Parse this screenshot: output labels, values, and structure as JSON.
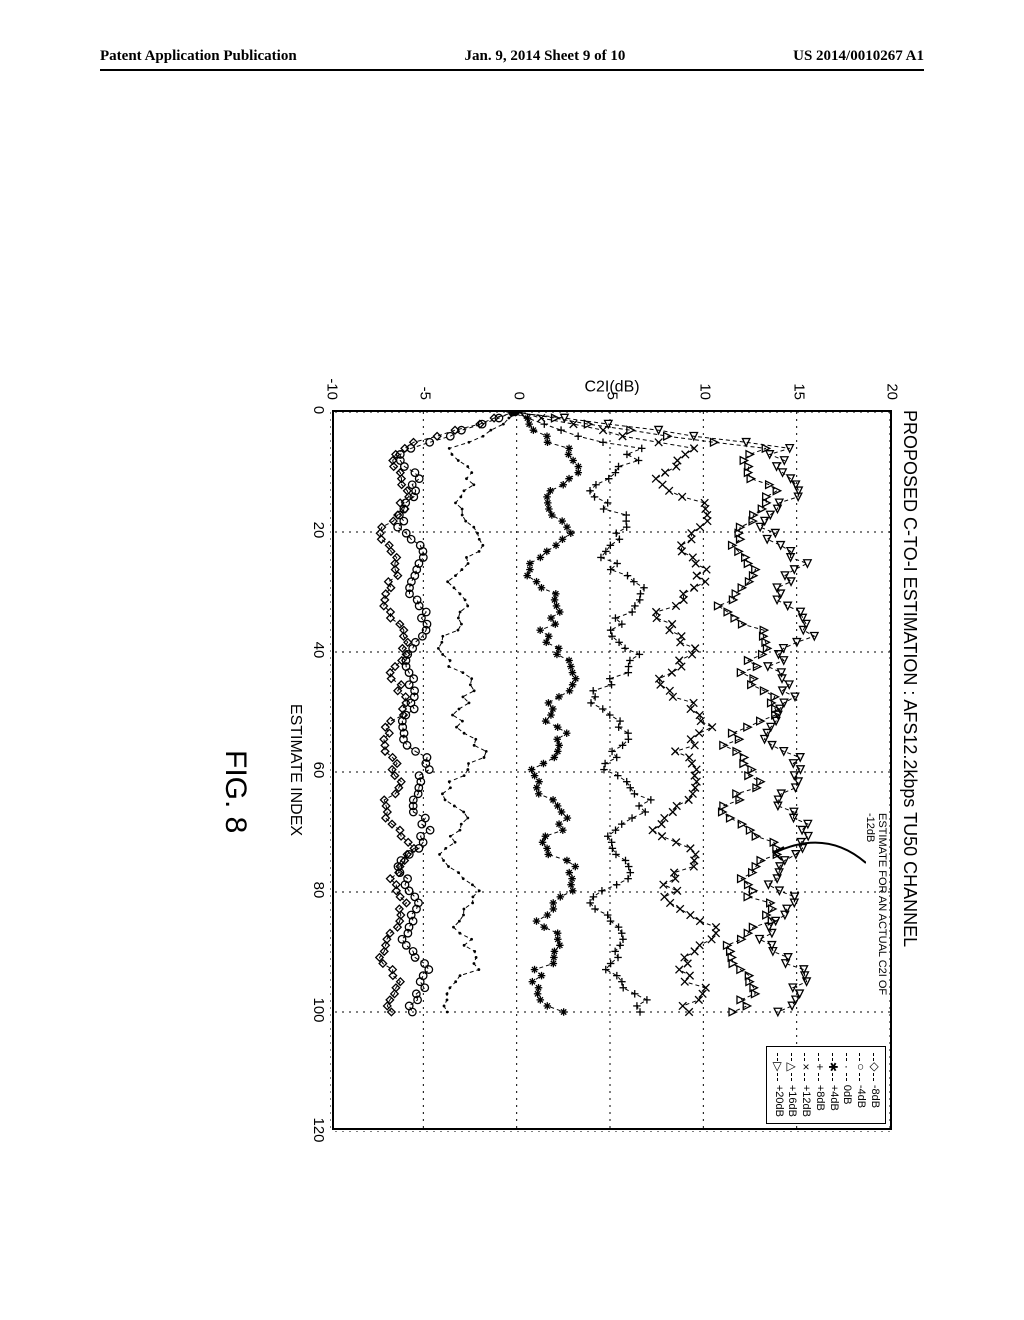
{
  "header": {
    "left": "Patent Application Publication",
    "center": "Jan. 9, 2014   Sheet 9 of 10",
    "right": "US 2014/0010267 A1"
  },
  "chart": {
    "type": "line",
    "title": "PROPOSED C-TO-I ESTIMATION : AFS12.2kbps TU50 CHANNEL",
    "xlabel": "ESTIMATE INDEX",
    "ylabel": "C2I(dB)",
    "fig_label": "FIG. 8",
    "xlim": [
      0,
      120
    ],
    "ylim": [
      -10,
      20
    ],
    "ytick_step": 5,
    "xtick_step": 20,
    "grid_color": "#000000",
    "grid_dash": "2,5",
    "background_color": "#ffffff",
    "line_color": "#000000",
    "connect_dash": "4,3",
    "marker_size": 5,
    "annotation": "ESTIMATE FOR AN ACTUAL C2I OF -12dB",
    "title_fontsize": 18,
    "label_fontsize": 16,
    "tick_fontsize": 15,
    "legend_fontsize": 11,
    "series": [
      {
        "label": "-8dB",
        "marker": "diamond",
        "nominal": -6.5,
        "amp": 0.9,
        "arrow_target_x": 55
      },
      {
        "label": "-4dB",
        "marker": "circle",
        "nominal": -5.5,
        "amp": 0.9
      },
      {
        "label": "0dB",
        "marker": "dot",
        "nominal": -3.0,
        "amp": 1.2
      },
      {
        "label": "+4dB",
        "marker": "star",
        "nominal": 2.0,
        "amp": 1.4
      },
      {
        "label": "+8dB",
        "marker": "plus",
        "nominal": 5.5,
        "amp": 1.5
      },
      {
        "label": "+12dB",
        "marker": "x",
        "nominal": 9.0,
        "amp": 1.6
      },
      {
        "label": "+16dB",
        "marker": "triangle-up",
        "nominal": 12.5,
        "amp": 1.6
      },
      {
        "label": "+20dB",
        "marker": "triangle-right",
        "nominal": 14.5,
        "amp": 1.5
      }
    ],
    "n_points": 100,
    "x_max_data": 100
  }
}
